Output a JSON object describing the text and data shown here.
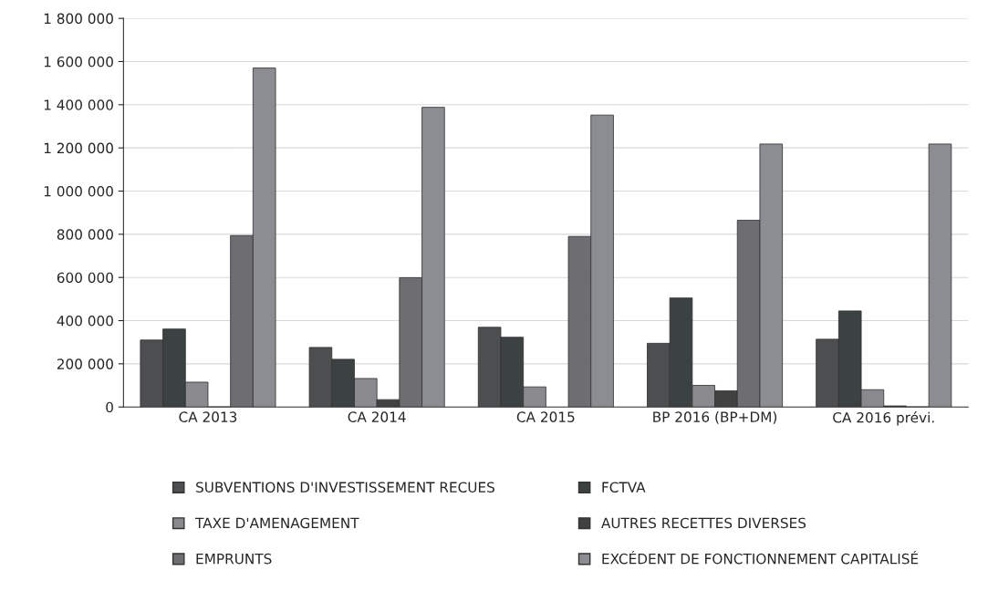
{
  "chart_data": {
    "type": "bar",
    "categories": [
      "CA 2013",
      "CA 2014",
      "CA 2015",
      "BP 2016 (BP+DM)",
      "CA 2016 prévi."
    ],
    "series": [
      {
        "name": "SUBVENTIONS D'INVESTISSEMENT RECUES",
        "color": "#4d4e50",
        "values": [
          310000,
          276000,
          369000,
          295000,
          314000
        ]
      },
      {
        "name": "FCTVA",
        "color": "#3c4141",
        "values": [
          361000,
          221000,
          323000,
          505000,
          445000
        ]
      },
      {
        "name": "TAXE D'AMENAGEMENT",
        "color": "#8a8a8e",
        "values": [
          115000,
          132000,
          93000,
          100000,
          80000
        ]
      },
      {
        "name": "AUTRES RECETTES DIVERSES",
        "color": "#414141",
        "values": [
          0,
          34000,
          null,
          75000,
          5000
        ]
      },
      {
        "name": "EMPRUNTS",
        "color": "#6d6d72",
        "values": [
          794000,
          599000,
          790000,
          865000,
          0
        ]
      },
      {
        "name": "EXCÉDENT DE FONCTIONNEMENT CAPITALISÉ",
        "color": "#8c8c93",
        "values": [
          1570000,
          1388000,
          1352000,
          1218000,
          1218000
        ]
      }
    ],
    "ylim": [
      0,
      1800000
    ],
    "yticks": [
      0,
      {
        "value": 200000,
        "label": "200 000"
      },
      {
        "value": 400000,
        "label": "400 000"
      },
      {
        "value": 600000,
        "label": "600 000"
      },
      {
        "value": 800000,
        "label": "800 000"
      },
      {
        "value": 1000000,
        "label": "1 000 000"
      },
      {
        "value": 1200000,
        "label": "1 200 000"
      },
      {
        "value": 1400000,
        "label": "1 400 000"
      },
      {
        "value": 1600000,
        "label": "1 600 000"
      },
      {
        "value": 1800000,
        "label": "1 800 000"
      }
    ],
    "grid": "y",
    "legend": "bottom"
  }
}
